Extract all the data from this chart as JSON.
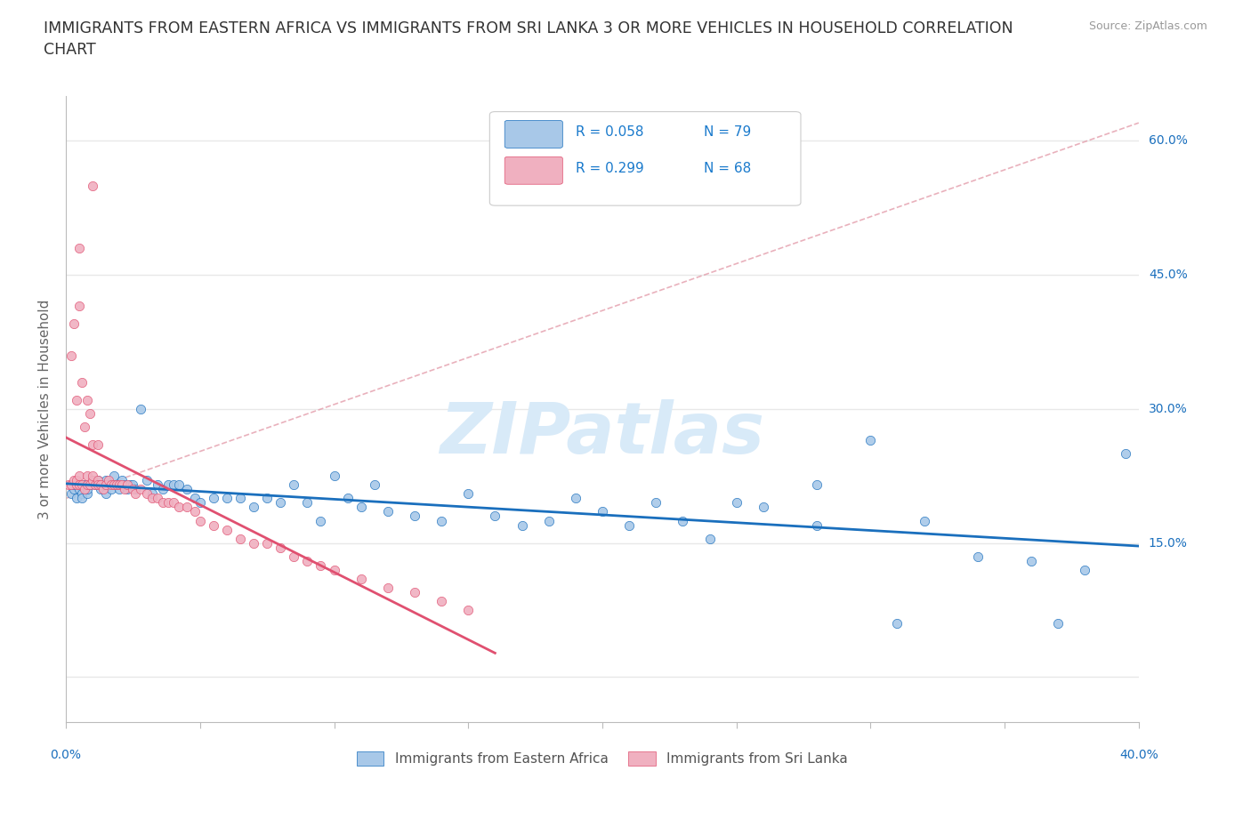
{
  "title": "IMMIGRANTS FROM EASTERN AFRICA VS IMMIGRANTS FROM SRI LANKA 3 OR MORE VEHICLES IN HOUSEHOLD CORRELATION\nCHART",
  "source": "Source: ZipAtlas.com",
  "ylabel": "3 or more Vehicles in Household",
  "series1_label": "Immigrants from Eastern Africa",
  "series2_label": "Immigrants from Sri Lanka",
  "series1_R": "R = 0.058",
  "series1_N": "N = 79",
  "series2_R": "R = 0.299",
  "series2_N": "N = 68",
  "color1": "#a8c8e8",
  "color2": "#f0b0c0",
  "line1_color": "#1a6fbd",
  "line2_color": "#e05070",
  "legend_R_color": "#1a7acc",
  "xlim": [
    0.0,
    0.4
  ],
  "ylim": [
    -0.05,
    0.65
  ],
  "watermark": "ZIPatlas",
  "watermark_color": "#d8eaf8",
  "bg_color": "#ffffff",
  "grid_color": "#e8e8e8",
  "series1_x": [
    0.002,
    0.003,
    0.003,
    0.004,
    0.005,
    0.005,
    0.006,
    0.006,
    0.007,
    0.008,
    0.008,
    0.009,
    0.01,
    0.011,
    0.012,
    0.013,
    0.014,
    0.015,
    0.015,
    0.016,
    0.017,
    0.018,
    0.019,
    0.02,
    0.021,
    0.022,
    0.023,
    0.024,
    0.025,
    0.026,
    0.028,
    0.03,
    0.032,
    0.034,
    0.036,
    0.038,
    0.04,
    0.042,
    0.045,
    0.048,
    0.05,
    0.055,
    0.06,
    0.065,
    0.07,
    0.075,
    0.08,
    0.085,
    0.09,
    0.095,
    0.1,
    0.105,
    0.11,
    0.115,
    0.12,
    0.13,
    0.14,
    0.15,
    0.16,
    0.17,
    0.18,
    0.19,
    0.2,
    0.21,
    0.22,
    0.23,
    0.24,
    0.25,
    0.26,
    0.28,
    0.3,
    0.32,
    0.34,
    0.36,
    0.38,
    0.395,
    0.28,
    0.31,
    0.37
  ],
  "series1_y": [
    0.205,
    0.21,
    0.215,
    0.2,
    0.215,
    0.21,
    0.205,
    0.2,
    0.215,
    0.205,
    0.21,
    0.215,
    0.22,
    0.215,
    0.22,
    0.21,
    0.215,
    0.205,
    0.22,
    0.215,
    0.21,
    0.225,
    0.215,
    0.21,
    0.22,
    0.215,
    0.21,
    0.215,
    0.215,
    0.21,
    0.3,
    0.22,
    0.205,
    0.215,
    0.21,
    0.215,
    0.215,
    0.215,
    0.21,
    0.2,
    0.195,
    0.2,
    0.2,
    0.2,
    0.19,
    0.2,
    0.195,
    0.215,
    0.195,
    0.175,
    0.225,
    0.2,
    0.19,
    0.215,
    0.185,
    0.18,
    0.175,
    0.205,
    0.18,
    0.17,
    0.175,
    0.2,
    0.185,
    0.17,
    0.195,
    0.175,
    0.155,
    0.195,
    0.19,
    0.215,
    0.265,
    0.175,
    0.135,
    0.13,
    0.12,
    0.25,
    0.17,
    0.06,
    0.06
  ],
  "series2_x": [
    0.001,
    0.002,
    0.003,
    0.004,
    0.004,
    0.005,
    0.005,
    0.006,
    0.007,
    0.008,
    0.008,
    0.009,
    0.01,
    0.01,
    0.011,
    0.012,
    0.012,
    0.013,
    0.014,
    0.015,
    0.016,
    0.017,
    0.018,
    0.019,
    0.02,
    0.021,
    0.022,
    0.023,
    0.025,
    0.026,
    0.028,
    0.03,
    0.032,
    0.034,
    0.036,
    0.038,
    0.04,
    0.042,
    0.045,
    0.048,
    0.05,
    0.055,
    0.06,
    0.065,
    0.07,
    0.075,
    0.08,
    0.085,
    0.09,
    0.095,
    0.1,
    0.11,
    0.12,
    0.13,
    0.14,
    0.15,
    0.002,
    0.003,
    0.004,
    0.005,
    0.006,
    0.007,
    0.008,
    0.009,
    0.01,
    0.012,
    0.005,
    0.01
  ],
  "series2_y": [
    0.215,
    0.215,
    0.22,
    0.215,
    0.22,
    0.215,
    0.225,
    0.215,
    0.21,
    0.215,
    0.225,
    0.215,
    0.22,
    0.225,
    0.215,
    0.22,
    0.215,
    0.215,
    0.21,
    0.215,
    0.22,
    0.215,
    0.215,
    0.215,
    0.215,
    0.215,
    0.21,
    0.215,
    0.21,
    0.205,
    0.21,
    0.205,
    0.2,
    0.2,
    0.195,
    0.195,
    0.195,
    0.19,
    0.19,
    0.185,
    0.175,
    0.17,
    0.165,
    0.155,
    0.15,
    0.15,
    0.145,
    0.135,
    0.13,
    0.125,
    0.12,
    0.11,
    0.1,
    0.095,
    0.085,
    0.075,
    0.36,
    0.395,
    0.31,
    0.415,
    0.33,
    0.28,
    0.31,
    0.295,
    0.26,
    0.26,
    0.48,
    0.55
  ]
}
